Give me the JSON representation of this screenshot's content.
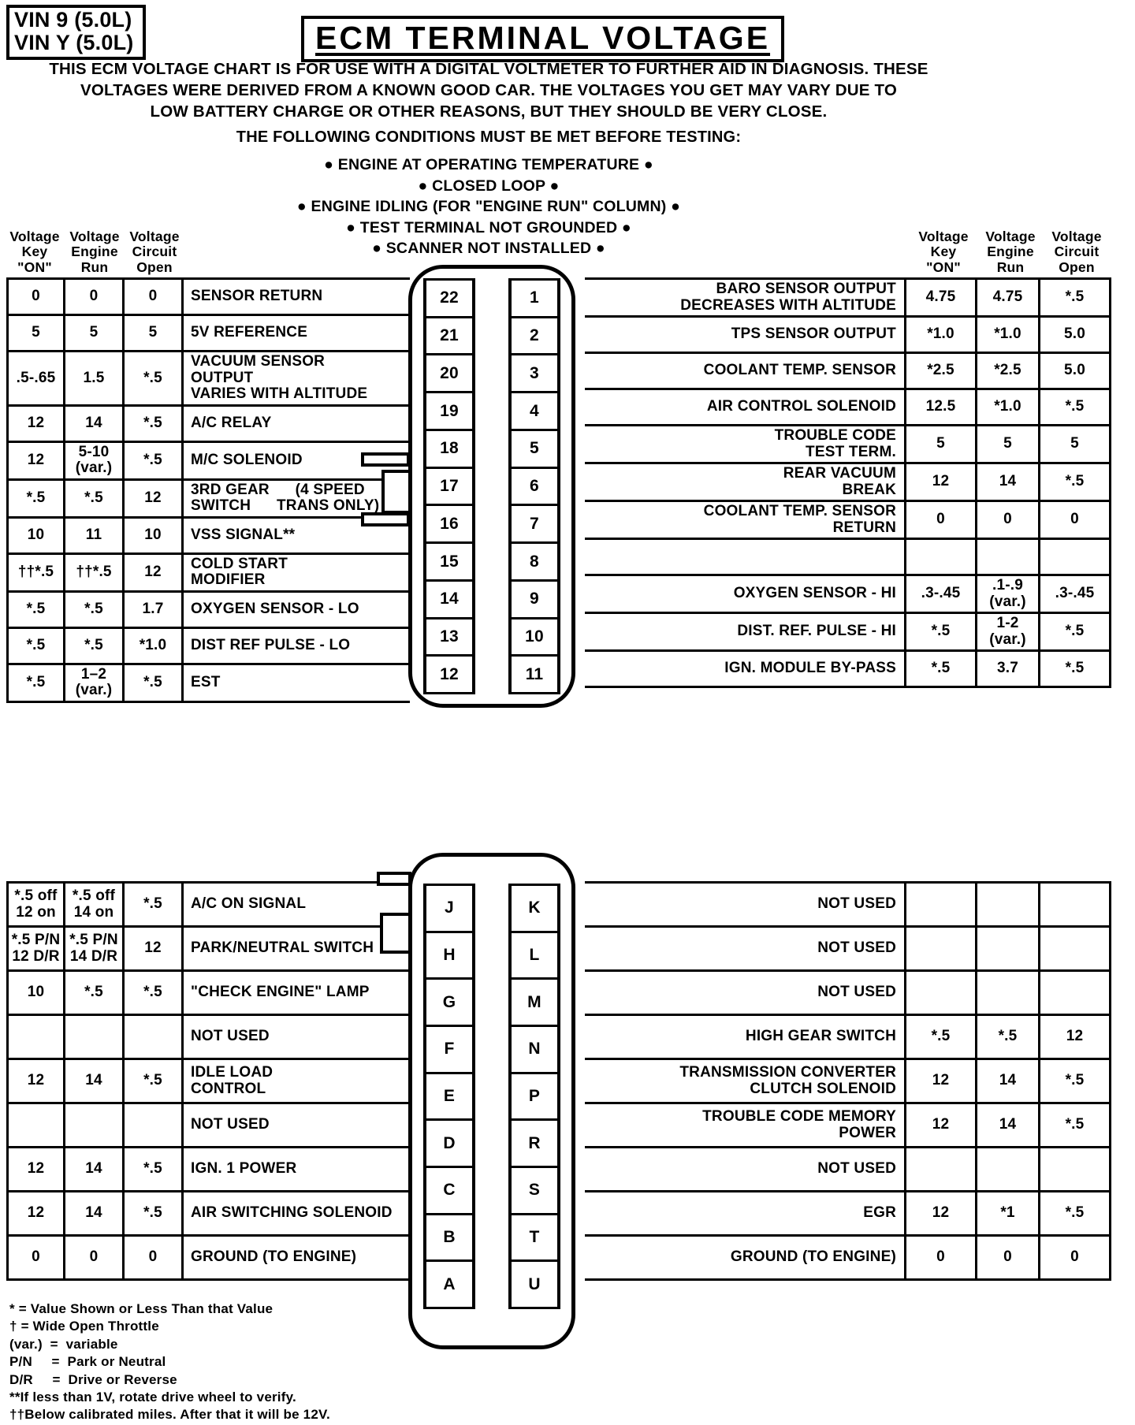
{
  "vin_box": {
    "line1": "VIN 9 (5.0L)",
    "line2": "VIN Y (5.0L)"
  },
  "title": "ECM TERMINAL VOLTAGE",
  "intro": [
    "THIS ECM VOLTAGE CHART IS FOR USE WITH A DIGITAL VOLTMETER TO FURTHER AID IN DIAGNOSIS. THESE",
    "VOLTAGES WERE DERIVED FROM A KNOWN GOOD CAR. THE VOLTAGES YOU GET MAY VARY DUE TO",
    "LOW BATTERY CHARGE OR OTHER REASONS, BUT THEY SHOULD BE VERY CLOSE."
  ],
  "conditions": {
    "heading": "THE FOLLOWING CONDITIONS MUST BE MET BEFORE TESTING:",
    "items": [
      "● ENGINE AT OPERATING TEMPERATURE ●",
      "● CLOSED LOOP ●",
      "● ENGINE IDLING (FOR \"ENGINE RUN\" COLUMN) ●",
      "● TEST TERMINAL NOT GROUNDED ●",
      "● SCANNER NOT INSTALLED ●"
    ]
  },
  "column_headers": [
    [
      "Voltage",
      "Key",
      "\"ON\""
    ],
    [
      "Voltage",
      "Engine",
      "Run"
    ],
    [
      "Voltage",
      "Circuit",
      "Open"
    ]
  ],
  "top_left": {
    "rows": [
      {
        "pin": "22",
        "key_on": "0",
        "engine_run": "0",
        "circuit_open": "0",
        "desc": "SENSOR RETURN"
      },
      {
        "pin": "21",
        "key_on": "5",
        "engine_run": "5",
        "circuit_open": "5",
        "desc": "5V REFERENCE"
      },
      {
        "pin": "20",
        "key_on": ".5-.65",
        "engine_run": "1.5",
        "circuit_open": "*.5",
        "desc": "VACUUM SENSOR\nOUTPUT\nVARIES WITH ALTITUDE"
      },
      {
        "pin": "19",
        "key_on": "12",
        "engine_run": "14",
        "circuit_open": "*.5",
        "desc": "A/C RELAY"
      },
      {
        "pin": "18",
        "key_on": "12",
        "engine_run": "5-10\n(var.)",
        "circuit_open": "*.5",
        "desc": "M/C SOLENOID"
      },
      {
        "pin": "17",
        "key_on": "*.5",
        "engine_run": "*.5",
        "circuit_open": "12",
        "desc": "3RD GEAR      (4 SPEED\nSWITCH      TRANS ONLY)"
      },
      {
        "pin": "16",
        "key_on": "10",
        "engine_run": "11",
        "circuit_open": "10",
        "desc": "VSS SIGNAL**"
      },
      {
        "pin": "15",
        "key_on": "††*.5",
        "engine_run": "††*.5",
        "circuit_open": "12",
        "desc": "COLD START\nMODIFIER"
      },
      {
        "pin": "14",
        "key_on": "*.5",
        "engine_run": "*.5",
        "circuit_open": "1.7",
        "desc": "OXYGEN SENSOR - LO"
      },
      {
        "pin": "13",
        "key_on": "*.5",
        "engine_run": "*.5",
        "circuit_open": "*1.0",
        "desc": "DIST REF PULSE - LO"
      },
      {
        "pin": "12",
        "key_on": "*.5",
        "engine_run": "1–2\n(var.)",
        "circuit_open": "*.5",
        "desc": "EST"
      }
    ]
  },
  "top_right": {
    "rows": [
      {
        "pin": "1",
        "desc": "BARO SENSOR OUTPUT\nDECREASES WITH ALTITUDE",
        "key_on": "4.75",
        "engine_run": "4.75",
        "circuit_open": "*.5"
      },
      {
        "pin": "2",
        "desc": "TPS SENSOR OUTPUT",
        "key_on": "*1.0",
        "engine_run": "*1.0",
        "circuit_open": "5.0"
      },
      {
        "pin": "3",
        "desc": "COOLANT TEMP. SENSOR",
        "key_on": "*2.5",
        "engine_run": "*2.5",
        "circuit_open": "5.0"
      },
      {
        "pin": "4",
        "desc": "AIR CONTROL SOLENOID",
        "key_on": "12.5",
        "engine_run": "*1.0",
        "circuit_open": "*.5"
      },
      {
        "pin": "5",
        "desc": "TROUBLE CODE\nTEST TERM.",
        "key_on": "5",
        "engine_run": "5",
        "circuit_open": "5"
      },
      {
        "pin": "6",
        "desc": "REAR VACUUM\nBREAK",
        "key_on": "12",
        "engine_run": "14",
        "circuit_open": "*.5"
      },
      {
        "pin": "7",
        "desc": "COOLANT TEMP. SENSOR\nRETURN",
        "key_on": "0",
        "engine_run": "0",
        "circuit_open": "0"
      },
      {
        "pin": "8",
        "desc": "",
        "key_on": "",
        "engine_run": "",
        "circuit_open": ""
      },
      {
        "pin": "9",
        "desc": "OXYGEN SENSOR - HI",
        "key_on": ".3-.45",
        "engine_run": ".1-.9\n(var.)",
        "circuit_open": ".3-.45"
      },
      {
        "pin": "10",
        "desc": "DIST. REF. PULSE - HI",
        "key_on": "*.5",
        "engine_run": "1-2\n(var.)",
        "circuit_open": "*.5"
      },
      {
        "pin": "11",
        "desc": "IGN. MODULE BY-PASS",
        "key_on": "*.5",
        "engine_run": "3.7",
        "circuit_open": "*.5"
      }
    ]
  },
  "bottom_left": {
    "rows": [
      {
        "pin": "J",
        "key_on": "*.5 off\n12 on",
        "engine_run": "*.5 off\n14 on",
        "circuit_open": "*.5",
        "desc": "A/C ON SIGNAL"
      },
      {
        "pin": "H",
        "key_on": "*.5 P/N\n12 D/R",
        "engine_run": "*.5 P/N\n14 D/R",
        "circuit_open": "12",
        "desc": "PARK/NEUTRAL SWITCH"
      },
      {
        "pin": "G",
        "key_on": "10",
        "engine_run": "*.5",
        "circuit_open": "*.5",
        "desc": "\"CHECK ENGINE\" LAMP"
      },
      {
        "pin": "F",
        "key_on": "",
        "engine_run": "",
        "circuit_open": "",
        "desc": "NOT USED"
      },
      {
        "pin": "E",
        "key_on": "12",
        "engine_run": "14",
        "circuit_open": "*.5",
        "desc": "IDLE LOAD\nCONTROL"
      },
      {
        "pin": "D",
        "key_on": "",
        "engine_run": "",
        "circuit_open": "",
        "desc": "NOT USED"
      },
      {
        "pin": "C",
        "key_on": "12",
        "engine_run": "14",
        "circuit_open": "*.5",
        "desc": "IGN. 1 POWER"
      },
      {
        "pin": "B",
        "key_on": "12",
        "engine_run": "14",
        "circuit_open": "*.5",
        "desc": "AIR SWITCHING SOLENOID"
      },
      {
        "pin": "A",
        "key_on": "0",
        "engine_run": "0",
        "circuit_open": "0",
        "desc": "GROUND (TO ENGINE)"
      }
    ]
  },
  "bottom_right": {
    "rows": [
      {
        "pin": "K",
        "desc": "NOT USED",
        "key_on": "",
        "engine_run": "",
        "circuit_open": ""
      },
      {
        "pin": "L",
        "desc": "NOT USED",
        "key_on": "",
        "engine_run": "",
        "circuit_open": ""
      },
      {
        "pin": "M",
        "desc": "NOT USED",
        "key_on": "",
        "engine_run": "",
        "circuit_open": ""
      },
      {
        "pin": "N",
        "desc": "HIGH GEAR SWITCH",
        "key_on": "*.5",
        "engine_run": "*.5",
        "circuit_open": "12"
      },
      {
        "pin": "P",
        "desc": "TRANSMISSION CONVERTER\nCLUTCH SOLENOID",
        "key_on": "12",
        "engine_run": "14",
        "circuit_open": "*.5"
      },
      {
        "pin": "R",
        "desc": "TROUBLE CODE MEMORY\nPOWER",
        "key_on": "12",
        "engine_run": "14",
        "circuit_open": "*.5"
      },
      {
        "pin": "S",
        "desc": "NOT USED",
        "key_on": "",
        "engine_run": "",
        "circuit_open": ""
      },
      {
        "pin": "T",
        "desc": "EGR",
        "key_on": "12",
        "engine_run": "*1",
        "circuit_open": "*.5"
      },
      {
        "pin": "U",
        "desc": "GROUND (TO ENGINE)",
        "key_on": "0",
        "engine_run": "0",
        "circuit_open": "0"
      }
    ]
  },
  "footnotes": [
    "* = Value Shown or Less Than that Value",
    "† = Wide Open Throttle",
    "(var.)  =  variable",
    "P/N     =  Park or Neutral",
    "D/R     =  Drive or Reverse",
    "**If less than 1V, rotate drive wheel to verify.",
    "††Below calibrated miles. After that it will be 12V."
  ]
}
